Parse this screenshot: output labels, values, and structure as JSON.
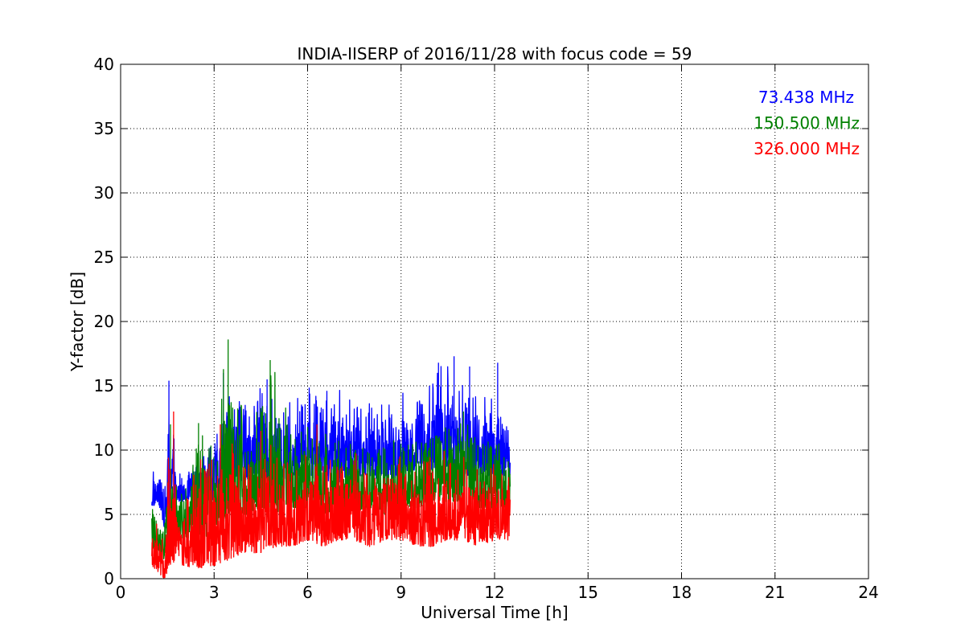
{
  "chart_data": {
    "type": "line",
    "title": "INDIA-IISERP of 2016/11/28 with focus code = 59",
    "xlabel": "Universal Time [h]",
    "ylabel": "Y-factor [dB]",
    "xlim": [
      0,
      24
    ],
    "ylim": [
      0,
      40
    ],
    "xticks": [
      0,
      3,
      6,
      9,
      12,
      15,
      18,
      21,
      24
    ],
    "yticks": [
      0,
      5,
      10,
      15,
      20,
      25,
      30,
      35,
      40
    ],
    "grid": true,
    "legend_position": "top-right",
    "series": [
      {
        "name": "73.438 MHz",
        "color": "#0000ff",
        "x": [
          1.0,
          1.2,
          1.4,
          1.6,
          1.8,
          2.0,
          2.5,
          3.0,
          3.5,
          4.0,
          4.5,
          5.0,
          5.5,
          6.0,
          6.5,
          7.0,
          7.5,
          8.0,
          8.5,
          9.0,
          9.5,
          10.0,
          10.5,
          11.0,
          11.5,
          12.0,
          12.5
        ],
        "low": [
          5.5,
          6.0,
          4.0,
          5.5,
          6.0,
          6.0,
          6.5,
          6.0,
          8.0,
          7.5,
          8.0,
          7.5,
          8.0,
          8.0,
          7.5,
          7.5,
          8.0,
          8.0,
          7.5,
          8.0,
          8.5,
          8.5,
          8.5,
          8.0,
          8.0,
          8.0,
          8.0
        ],
        "high": [
          9.0,
          8.0,
          7.5,
          15.4,
          8.5,
          8.0,
          9.0,
          11.0,
          14.5,
          13.5,
          15.5,
          14.0,
          14.0,
          15.0,
          14.5,
          15.0,
          13.5,
          14.0,
          13.5,
          15.0,
          14.5,
          15.5,
          17.3,
          16.5,
          15.0,
          15.5,
          13.0
        ],
        "peaks": [
          [
            1.55,
            15.4
          ],
          [
            3.3,
            16.0
          ],
          [
            4.7,
            15.5
          ],
          [
            10.2,
            16.8
          ],
          [
            10.7,
            17.3
          ],
          [
            11.2,
            16.5
          ],
          [
            12.1,
            16.8
          ]
        ]
      },
      {
        "name": "150.500 MHz",
        "color": "#008000",
        "x": [
          1.0,
          1.2,
          1.4,
          1.6,
          1.8,
          2.0,
          2.5,
          3.0,
          3.5,
          4.0,
          4.5,
          5.0,
          5.5,
          6.0,
          6.5,
          7.0,
          7.5,
          8.0,
          8.5,
          9.0,
          9.5,
          10.0,
          10.5,
          11.0,
          11.5,
          12.0,
          12.5
        ],
        "low": [
          2.5,
          2.0,
          1.5,
          2.5,
          3.0,
          3.0,
          3.5,
          3.0,
          5.0,
          5.0,
          5.5,
          5.0,
          5.5,
          5.5,
          5.0,
          5.5,
          5.0,
          5.5,
          5.0,
          5.5,
          5.5,
          6.0,
          6.0,
          6.0,
          5.5,
          5.5,
          5.5
        ],
        "high": [
          7.0,
          6.0,
          5.0,
          12.0,
          7.0,
          6.5,
          12.0,
          10.0,
          18.6,
          12.0,
          14.0,
          17.0,
          11.0,
          12.0,
          11.5,
          11.0,
          10.5,
          10.0,
          11.0,
          10.5,
          11.0,
          11.0,
          12.0,
          13.0,
          10.5,
          11.0,
          10.0
        ],
        "peaks": [
          [
            1.6,
            12.0
          ],
          [
            2.5,
            12.1
          ],
          [
            3.3,
            16.3
          ],
          [
            3.45,
            18.6
          ],
          [
            4.8,
            17.0
          ],
          [
            11.0,
            13.0
          ]
        ]
      },
      {
        "name": "326.000 MHz",
        "color": "#ff0000",
        "x": [
          1.0,
          1.2,
          1.4,
          1.6,
          1.8,
          2.0,
          2.5,
          3.0,
          3.5,
          4.0,
          4.5,
          5.0,
          5.5,
          6.0,
          6.5,
          7.0,
          7.5,
          8.0,
          8.5,
          9.0,
          9.5,
          10.0,
          10.5,
          11.0,
          11.5,
          12.0,
          12.5
        ],
        "low": [
          1.0,
          0.5,
          0.0,
          1.0,
          1.5,
          1.0,
          0.8,
          1.0,
          1.5,
          2.0,
          2.0,
          2.5,
          2.5,
          3.0,
          2.5,
          3.0,
          3.0,
          2.5,
          3.0,
          3.0,
          2.5,
          2.5,
          3.0,
          3.0,
          2.5,
          3.0,
          3.0
        ],
        "high": [
          6.0,
          4.0,
          3.0,
          13.0,
          6.0,
          5.0,
          10.0,
          9.5,
          11.0,
          9.5,
          11.5,
          10.0,
          9.0,
          10.0,
          9.0,
          9.5,
          10.0,
          9.0,
          10.0,
          9.5,
          9.0,
          10.0,
          10.0,
          9.5,
          9.0,
          9.0,
          8.5
        ],
        "peaks": [
          [
            1.7,
            13.0
          ],
          [
            3.2,
            12.0
          ],
          [
            4.5,
            11.5
          ],
          [
            6.3,
            12.0
          ]
        ]
      }
    ]
  }
}
